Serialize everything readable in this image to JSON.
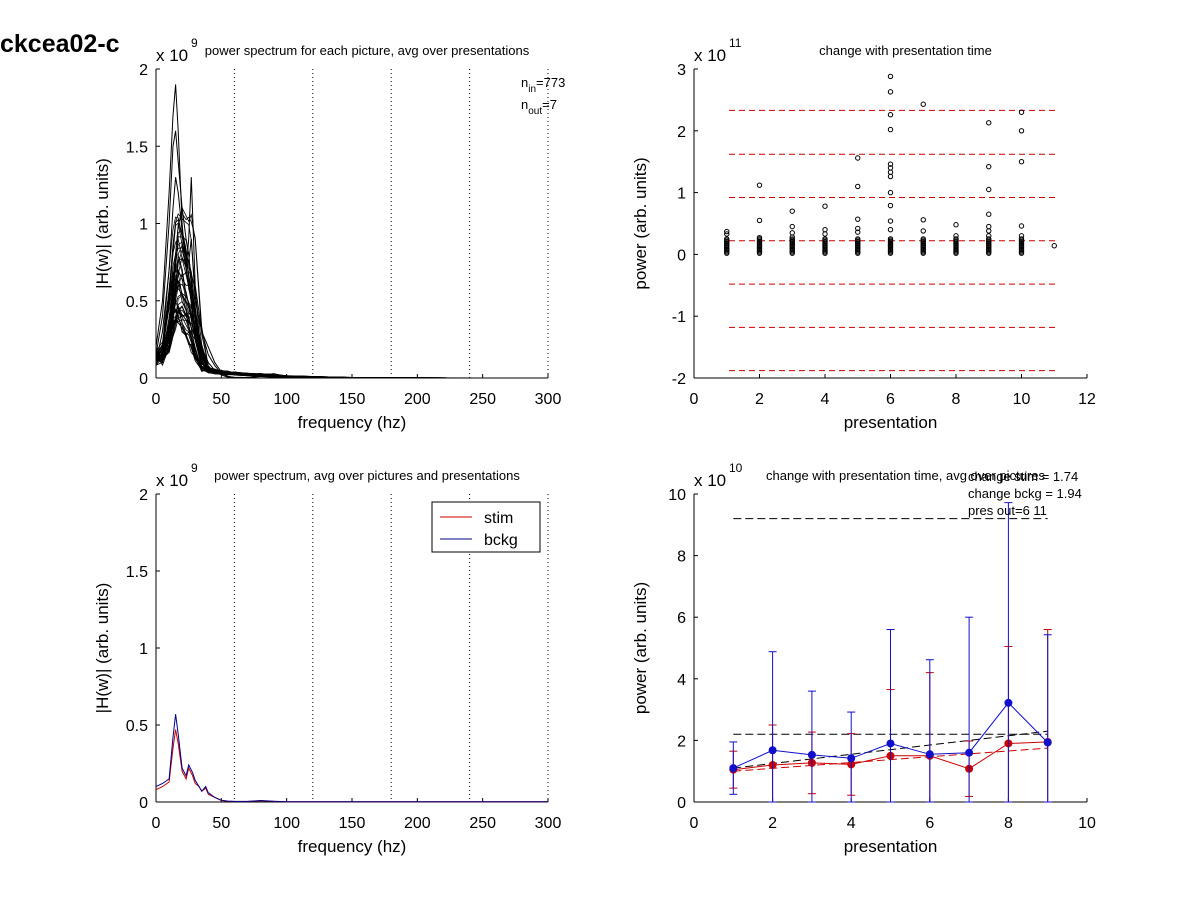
{
  "figure": {
    "title": "ckcea02-c"
  },
  "chart_data": [
    {
      "type": "line",
      "title": "power spectrum for each picture, avg over presentations",
      "xlabel": "frequency (hz)",
      "ylabel": "|H(w)| (arb. units)",
      "exponent": "9",
      "xlim": [
        0,
        300
      ],
      "ylim": [
        0,
        2
      ],
      "xticks": [
        0,
        50,
        100,
        150,
        200,
        250,
        300
      ],
      "yticks": [
        0,
        0.5,
        1,
        1.5,
        2
      ],
      "vlines": [
        60,
        120,
        180,
        240,
        300
      ],
      "annotations": [
        {
          "base": "n",
          "sub": "in",
          "rest": "=773"
        },
        {
          "base": "n",
          "sub": "out",
          "rest": "=7"
        }
      ],
      "series_count_note": "",
      "envelope": {
        "freq": [
          0,
          5,
          10,
          13,
          15,
          17,
          20,
          23,
          25,
          27,
          30,
          35,
          40,
          45,
          50,
          55,
          60,
          70,
          80,
          90,
          100,
          150,
          200,
          250,
          300
        ],
        "peak_curves": [
          [
            0.2,
            0.5,
            1.2,
            1.7,
            1.9,
            1.6,
            1.0,
            0.7,
            0.9,
            1.3,
            0.6,
            0.3,
            0.15,
            0.08,
            0.03,
            0.01,
            0.005,
            0.003,
            0.02,
            0.01,
            0.003,
            0.001,
            0,
            0,
            0
          ],
          [
            0.15,
            0.4,
            1.0,
            1.5,
            1.6,
            1.4,
            1.1,
            0.9,
            0.8,
            0.6,
            0.4,
            0.2,
            0.1,
            0.05,
            0.02,
            0.005,
            0.002,
            0.002,
            0.01,
            0.005,
            0.002,
            0.001,
            0,
            0,
            0
          ],
          [
            0.1,
            0.3,
            0.7,
            1.1,
            1.3,
            1.2,
            0.95,
            0.8,
            0.75,
            0.9,
            0.5,
            0.3,
            0.2,
            0.1,
            0.04,
            0.01,
            0.003,
            0.002,
            0.015,
            0.008,
            0.002,
            0.001,
            0,
            0,
            0
          ]
        ]
      }
    },
    {
      "type": "scatter",
      "title": "change with presentation time",
      "xlabel": "presentation",
      "ylabel": "power (arb. units)",
      "exponent": "11",
      "xlim": [
        0,
        12
      ],
      "ylim": [
        -2,
        3
      ],
      "xticks": [
        0,
        2,
        4,
        6,
        8,
        10,
        12
      ],
      "yticks": [
        -2,
        -1,
        0,
        1,
        2,
        3
      ],
      "hlines": [
        2.33,
        1.62,
        0.92,
        0.22,
        -0.48,
        -1.18,
        -1.88
      ],
      "hline_color": "#cc0000",
      "points": [
        [
          1,
          0.37
        ],
        [
          1,
          0.33
        ],
        [
          2,
          1.12
        ],
        [
          2,
          0.55
        ],
        [
          2,
          0.27
        ],
        [
          3,
          0.7
        ],
        [
          3,
          0.45
        ],
        [
          3,
          0.35
        ],
        [
          3,
          0.28
        ],
        [
          4,
          0.78
        ],
        [
          4,
          0.4
        ],
        [
          4,
          0.33
        ],
        [
          5,
          1.56
        ],
        [
          5,
          1.1
        ],
        [
          5,
          0.57
        ],
        [
          5,
          0.42
        ],
        [
          5,
          0.36
        ],
        [
          6,
          2.88
        ],
        [
          6,
          2.63
        ],
        [
          6,
          2.26
        ],
        [
          6,
          2.02
        ],
        [
          6,
          1.46
        ],
        [
          6,
          1.4
        ],
        [
          6,
          1.33
        ],
        [
          6,
          1.26
        ],
        [
          6,
          1.0
        ],
        [
          6,
          0.79
        ],
        [
          6,
          0.54
        ],
        [
          6,
          0.4
        ],
        [
          7,
          2.43
        ],
        [
          7,
          0.56
        ],
        [
          7,
          0.38
        ],
        [
          8,
          0.48
        ],
        [
          8,
          0.3
        ],
        [
          9,
          2.13
        ],
        [
          9,
          1.42
        ],
        [
          9,
          1.05
        ],
        [
          9,
          0.65
        ],
        [
          9,
          0.45
        ],
        [
          9,
          0.38
        ],
        [
          9,
          0.3
        ],
        [
          10,
          2.3
        ],
        [
          10,
          2.0
        ],
        [
          10,
          1.5
        ],
        [
          10,
          0.46
        ],
        [
          10,
          0.3
        ],
        [
          11,
          0.14
        ]
      ],
      "cluster_range": [
        0.02,
        0.25
      ]
    },
    {
      "type": "line",
      "title": "power spectrum, avg over pictures and presentations",
      "xlabel": "frequency (hz)",
      "ylabel": "|H(w)| (arb. units)",
      "exponent": "9",
      "xlim": [
        0,
        300
      ],
      "ylim": [
        0,
        2
      ],
      "xticks": [
        0,
        50,
        100,
        150,
        200,
        250,
        300
      ],
      "yticks": [
        0,
        0.5,
        1,
        1.5,
        2
      ],
      "vlines": [
        60,
        120,
        180,
        240,
        300
      ],
      "legend": {
        "position": "top-right",
        "entries": [
          {
            "name": "stim",
            "color": "#cc0000"
          },
          {
            "name": "bckg",
            "color": "#00008b"
          }
        ]
      },
      "x": [
        0,
        5,
        10,
        13,
        15,
        17,
        20,
        23,
        25,
        28,
        30,
        33,
        35,
        38,
        40,
        45,
        50,
        55,
        60,
        70,
        80,
        90,
        100,
        150,
        200,
        250,
        300
      ],
      "series": [
        {
          "name": "stim",
          "color": "#cc0000",
          "values": [
            0.08,
            0.1,
            0.13,
            0.35,
            0.47,
            0.38,
            0.2,
            0.15,
            0.22,
            0.17,
            0.12,
            0.1,
            0.07,
            0.09,
            0.05,
            0.03,
            0.01,
            0.005,
            0.003,
            0.003,
            0.008,
            0.004,
            0.002,
            0.001,
            0.001,
            0.001,
            0.001
          ]
        },
        {
          "name": "bckg",
          "color": "#00008b",
          "values": [
            0.1,
            0.12,
            0.15,
            0.42,
            0.57,
            0.44,
            0.22,
            0.17,
            0.24,
            0.19,
            0.14,
            0.1,
            0.07,
            0.1,
            0.06,
            0.03,
            0.012,
            0.006,
            0.004,
            0.004,
            0.01,
            0.005,
            0.002,
            0.001,
            0.001,
            0.001,
            0.001
          ]
        }
      ]
    },
    {
      "type": "line",
      "title": "change with presentation time, avg over pictures",
      "xlabel": "presentation",
      "ylabel": "power (arb. units)",
      "exponent": "10",
      "xlim": [
        0,
        10
      ],
      "ylim": [
        0,
        10
      ],
      "xticks": [
        0,
        2,
        4,
        6,
        8,
        10
      ],
      "yticks": [
        0,
        2,
        4,
        6,
        8,
        10
      ],
      "annotations": [
        "change stim = 1.74",
        "change bckg = 1.94",
        "pres out=6 11"
      ],
      "hlines": [
        9.2,
        2.2
      ],
      "trend_lines": [
        {
          "color": "#000000",
          "from": [
            1,
            1.1
          ],
          "to": [
            9,
            2.3
          ]
        },
        {
          "color": "#cc0000",
          "from": [
            1,
            1.0
          ],
          "to": [
            9,
            1.75
          ]
        }
      ],
      "x": [
        1,
        2,
        3,
        4,
        5,
        6,
        7,
        8,
        9
      ],
      "series": [
        {
          "name": "stim",
          "color": "#cc0000",
          "values": [
            1.05,
            1.2,
            1.27,
            1.22,
            1.5,
            1.5,
            1.08,
            1.9,
            1.95
          ],
          "err": [
            0.6,
            1.3,
            1.0,
            1.0,
            2.15,
            2.7,
            0.9,
            3.15,
            3.65
          ]
        },
        {
          "name": "bckg",
          "color": "#1010cc",
          "values": [
            1.1,
            1.68,
            1.53,
            1.42,
            1.9,
            1.55,
            1.6,
            3.22,
            1.93
          ],
          "err": [
            0.85,
            3.2,
            2.07,
            1.5,
            3.7,
            3.07,
            4.4,
            6.5,
            3.5
          ]
        }
      ]
    }
  ]
}
